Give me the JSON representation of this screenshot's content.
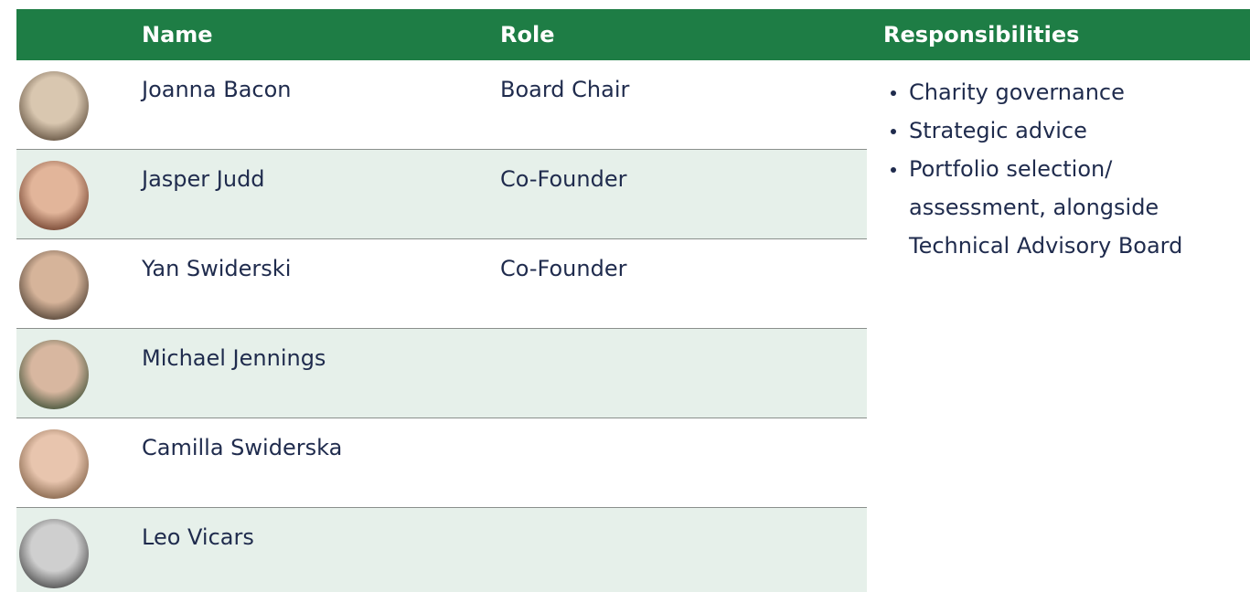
{
  "table": {
    "header": [
      "Name",
      "Role",
      "Responsibilities"
    ],
    "rows": [
      {
        "name": "Joanna Bacon",
        "role": "Board Chair"
      },
      {
        "name": "Jasper Judd",
        "role": "Co-Founder"
      },
      {
        "name": "Yan Swiderski",
        "role": "Co-Founder"
      },
      {
        "name": "Michael Jennings"
      },
      {
        "name": "Camilla Swiderska"
      },
      {
        "name": "Leo Vicars"
      }
    ],
    "responsibilities": [
      "Charity governance",
      "Strategic advice",
      "Portfolio selection/ assessment, alongside Technical Advisory Board"
    ]
  }
}
